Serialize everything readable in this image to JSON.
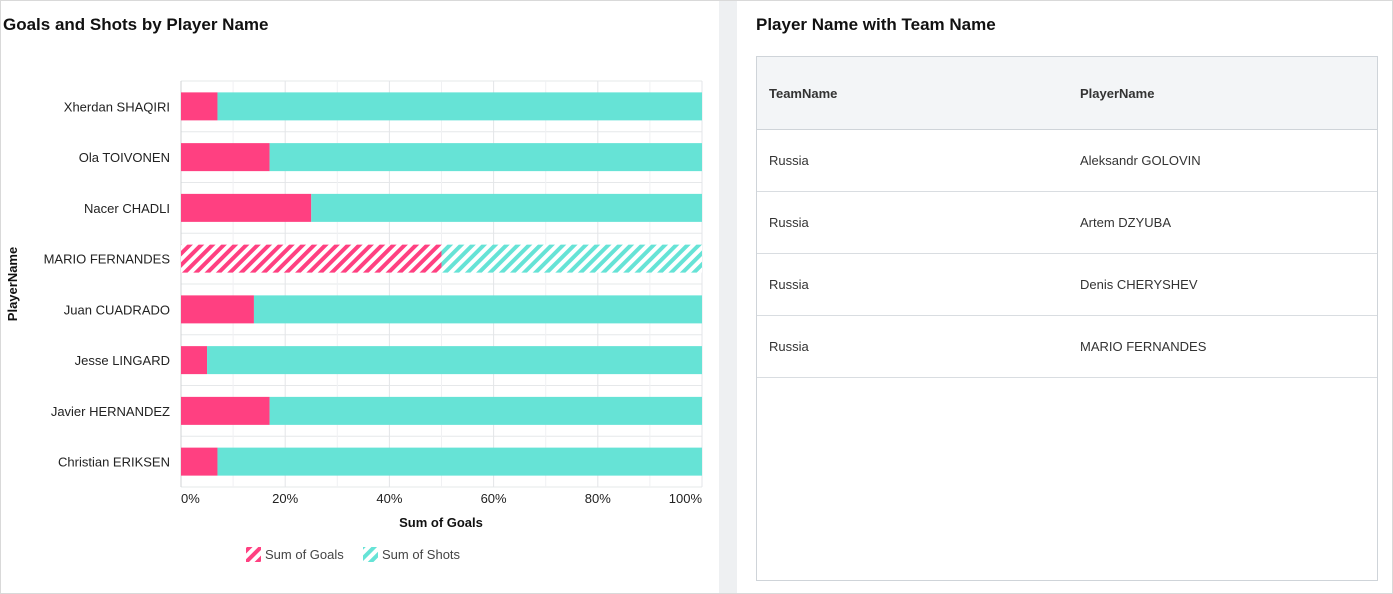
{
  "left_panel": {
    "title": "Goals and Shots by Player Name"
  },
  "right_panel": {
    "title": "Player Name with Team Name",
    "table": {
      "columns": [
        "TeamName",
        "PlayerName"
      ],
      "rows": [
        [
          "Russia",
          "Aleksandr GOLOVIN"
        ],
        [
          "Russia",
          "Artem DZYUBA"
        ],
        [
          "Russia",
          "Denis CHERYSHEV"
        ],
        [
          "Russia",
          "MARIO FERNANDES"
        ]
      ]
    }
  },
  "chart_data": {
    "type": "bar",
    "orientation": "horizontal",
    "stacked": "percent",
    "title": "Goals and Shots by Player Name",
    "xlabel": "Sum of Goals",
    "ylabel": "PlayerName",
    "xlim": [
      0,
      100
    ],
    "xticks": [
      "0%",
      "20%",
      "40%",
      "60%",
      "80%",
      "100%"
    ],
    "categories": [
      "Xherdan SHAQIRI",
      "Ola TOIVONEN",
      "Nacer CHADLI",
      "MARIO FERNANDES",
      "Juan CUADRADO",
      "Jesse LINGARD",
      "Javier HERNANDEZ",
      "Christian ERIKSEN"
    ],
    "series": [
      {
        "name": "Sum of Goals",
        "color": "#ff4081",
        "values": [
          7,
          17,
          25,
          50,
          14,
          5,
          17,
          7
        ]
      },
      {
        "name": "Sum of Shots",
        "color": "#66e3d6",
        "values": [
          93,
          83,
          75,
          50,
          86,
          95,
          83,
          93
        ]
      }
    ],
    "highlighted_category": "MARIO FERNANDES",
    "grid": true,
    "legend_position": "bottom"
  }
}
